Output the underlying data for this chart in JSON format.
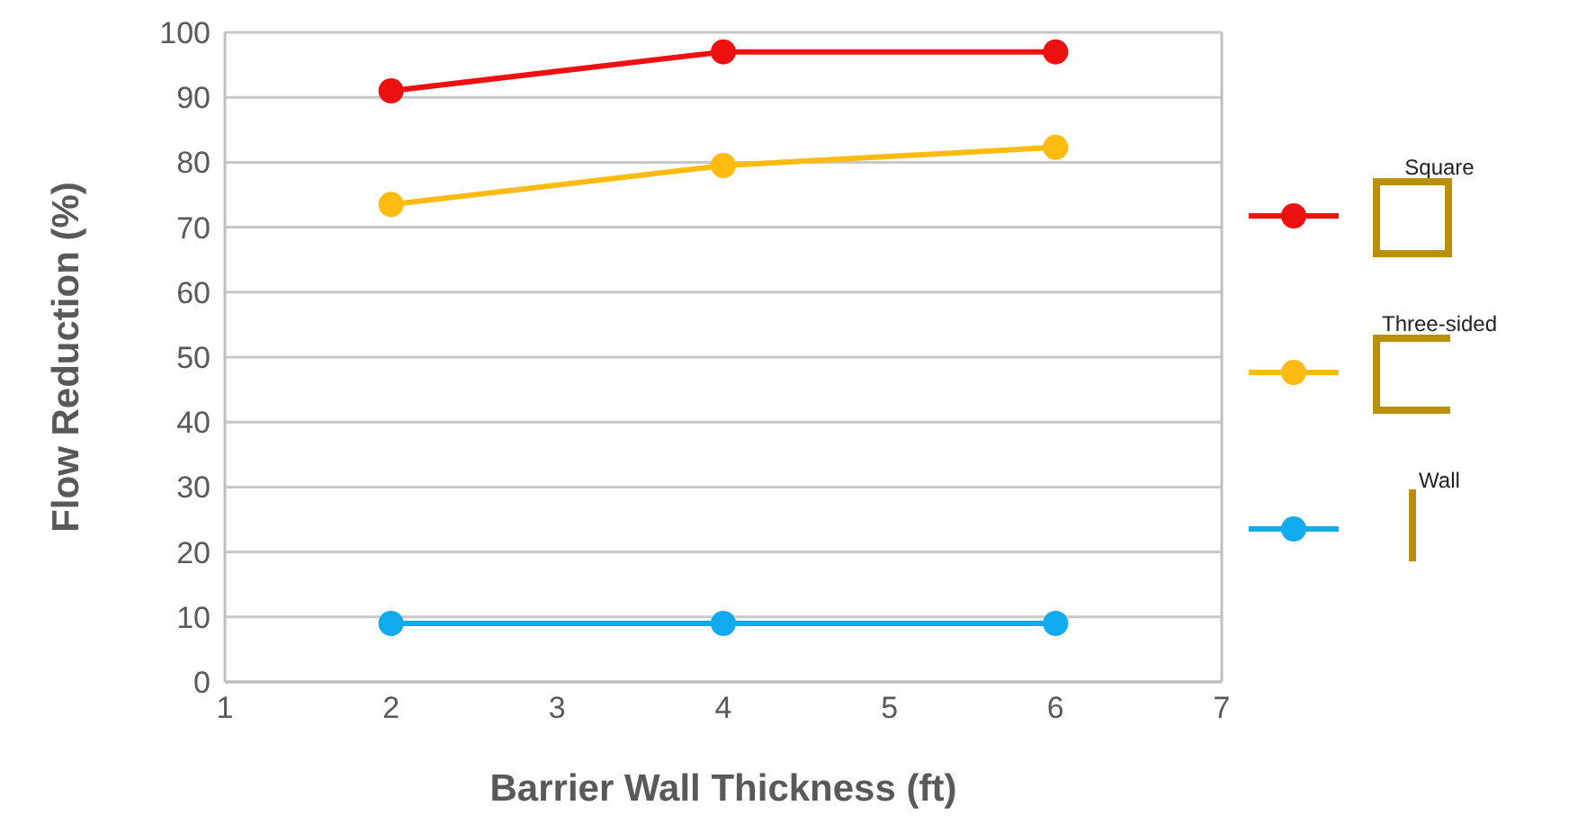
{
  "chart_data": {
    "type": "line",
    "xlabel": "Barrier Wall Thickness (ft)",
    "ylabel": "Flow Reduction (%)",
    "x": [
      2,
      4,
      6
    ],
    "series": [
      {
        "name": "Square",
        "color": "#ee1111",
        "values": [
          91,
          97,
          97
        ]
      },
      {
        "name": "Three-sided",
        "color": "#ffbb11",
        "values": [
          73.5,
          79.5,
          82.3
        ]
      },
      {
        "name": "Wall",
        "color": "#11aaee",
        "values": [
          9,
          9,
          9
        ]
      }
    ],
    "xlim": [
      1,
      7
    ],
    "xticks": [
      1,
      2,
      3,
      4,
      5,
      6,
      7
    ],
    "ylim": [
      0,
      100
    ],
    "yticks": [
      0,
      10,
      20,
      30,
      40,
      50,
      60,
      70,
      80,
      90,
      100
    ],
    "grid": "y",
    "legend": "right",
    "marker": "circle",
    "line_style": "solid"
  }
}
